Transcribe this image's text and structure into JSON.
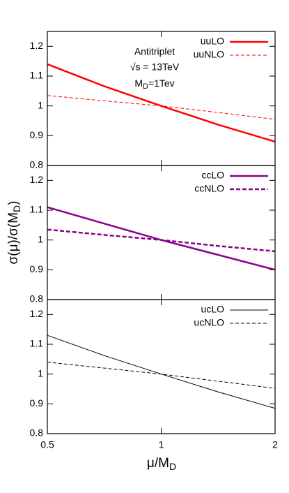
{
  "chart_data": [
    {
      "type": "line",
      "log_x": true,
      "xlim": [
        0.5,
        2
      ],
      "ylim": [
        0.8,
        1.25
      ],
      "yticks": [
        0.8,
        0.9,
        1,
        1.1,
        1.2
      ],
      "legend": "upper right",
      "annotation": {
        "lines": [
          "Antitriplet",
          "√s = 13TeV"
        ],
        "m": "M",
        "m_sub": "D",
        "m_rest": "=1Tev"
      },
      "x": [
        0.5,
        0.7071,
        1,
        1.4142,
        2
      ],
      "series": [
        {
          "name": "uuLO",
          "color": "#ff0000",
          "dashed": false,
          "width": 2.5,
          "values": [
            1.14,
            1.066,
            1.0,
            0.937,
            0.88
          ]
        },
        {
          "name": "uuNLO",
          "color": "#ff0000",
          "dashed": true,
          "width": 1,
          "values": [
            1.035,
            1.017,
            1.0,
            0.978,
            0.955
          ]
        }
      ]
    },
    {
      "type": "line",
      "log_x": true,
      "xlim": [
        0.5,
        2
      ],
      "ylim": [
        0.8,
        1.25
      ],
      "yticks": [
        0.8,
        0.9,
        1,
        1.1,
        1.2
      ],
      "legend": "upper right",
      "ylabel": {
        "main": "σ(μ)/σ(M",
        "sub": "D",
        "end": ")"
      },
      "x": [
        0.5,
        0.7071,
        1,
        1.4142,
        2
      ],
      "series": [
        {
          "name": "ccLO",
          "color": "#8b008b",
          "dashed": false,
          "width": 2.5,
          "values": [
            1.11,
            1.055,
            1.0,
            0.95,
            0.9
          ]
        },
        {
          "name": "ccNLO",
          "color": "#8b008b",
          "dashed": true,
          "width": 2.5,
          "values": [
            1.035,
            1.017,
            1.0,
            0.98,
            0.962
          ]
        }
      ]
    },
    {
      "type": "line",
      "log_x": true,
      "xlim": [
        0.5,
        2
      ],
      "ylim": [
        0.8,
        1.25
      ],
      "yticks": [
        0.8,
        0.9,
        1,
        1.1,
        1.2
      ],
      "xticks": [
        0.5,
        1,
        2
      ],
      "legend": "upper right",
      "xlabel": {
        "main": "μ/M",
        "sub": "D"
      },
      "x": [
        0.5,
        0.7071,
        1,
        1.4142,
        2
      ],
      "series": [
        {
          "name": "ucLO",
          "color": "#000000",
          "dashed": false,
          "width": 1,
          "values": [
            1.13,
            1.062,
            1.0,
            0.94,
            0.885
          ]
        },
        {
          "name": "ucNLO",
          "color": "#000000",
          "dashed": true,
          "width": 1,
          "values": [
            1.04,
            1.02,
            1.0,
            0.976,
            0.952
          ]
        }
      ]
    }
  ]
}
